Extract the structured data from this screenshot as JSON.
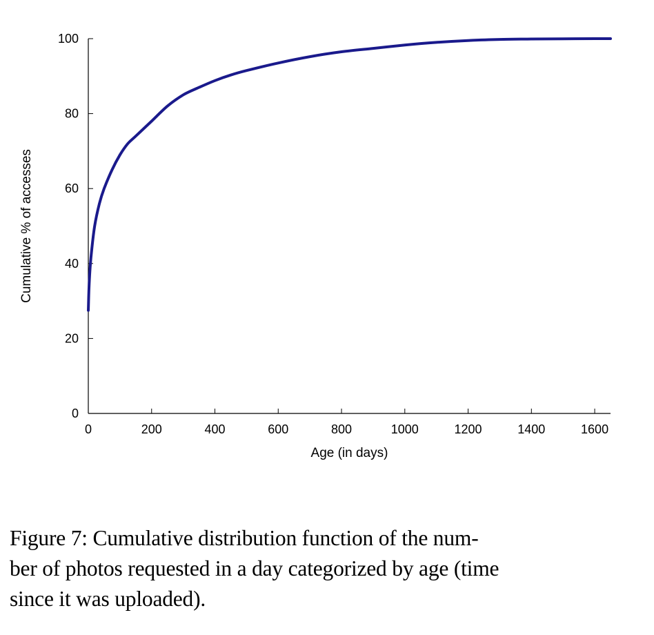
{
  "chart_data": {
    "type": "line",
    "xlabel": "Age (in days)",
    "ylabel": "Cumulative % of accesses",
    "xlim": [
      0,
      1650
    ],
    "ylim": [
      0,
      100
    ],
    "xticks": [
      0,
      200,
      400,
      600,
      800,
      1000,
      1200,
      1400,
      1600
    ],
    "yticks": [
      0,
      20,
      40,
      60,
      80,
      100
    ],
    "grid": false,
    "line_color": "#1a1a8c",
    "series": [
      {
        "x": [
          0,
          2,
          5,
          10,
          20,
          35,
          50,
          75,
          100,
          125,
          150,
          200,
          250,
          300,
          350,
          400,
          450,
          500,
          600,
          700,
          800,
          900,
          1000,
          1100,
          1200,
          1300,
          1400,
          1500,
          1600,
          1650
        ],
        "y": [
          27.5,
          33,
          38,
          43,
          50,
          56,
          60,
          65,
          69,
          72,
          74,
          78,
          82,
          85,
          87,
          88.8,
          90.3,
          91.5,
          93.5,
          95.2,
          96.5,
          97.4,
          98.3,
          99,
          99.5,
          99.8,
          99.9,
          99.95,
          100,
          100
        ]
      }
    ]
  },
  "caption": "Figure 7: Cumulative distribution function of the number of photos requested in a day categorized by age (time since it was uploaded).",
  "caption_lines": [
    "Figure 7:  Cumulative distribution function of the num-",
    "ber of photos requested in a day categorized by age (time",
    "since it was uploaded)."
  ]
}
